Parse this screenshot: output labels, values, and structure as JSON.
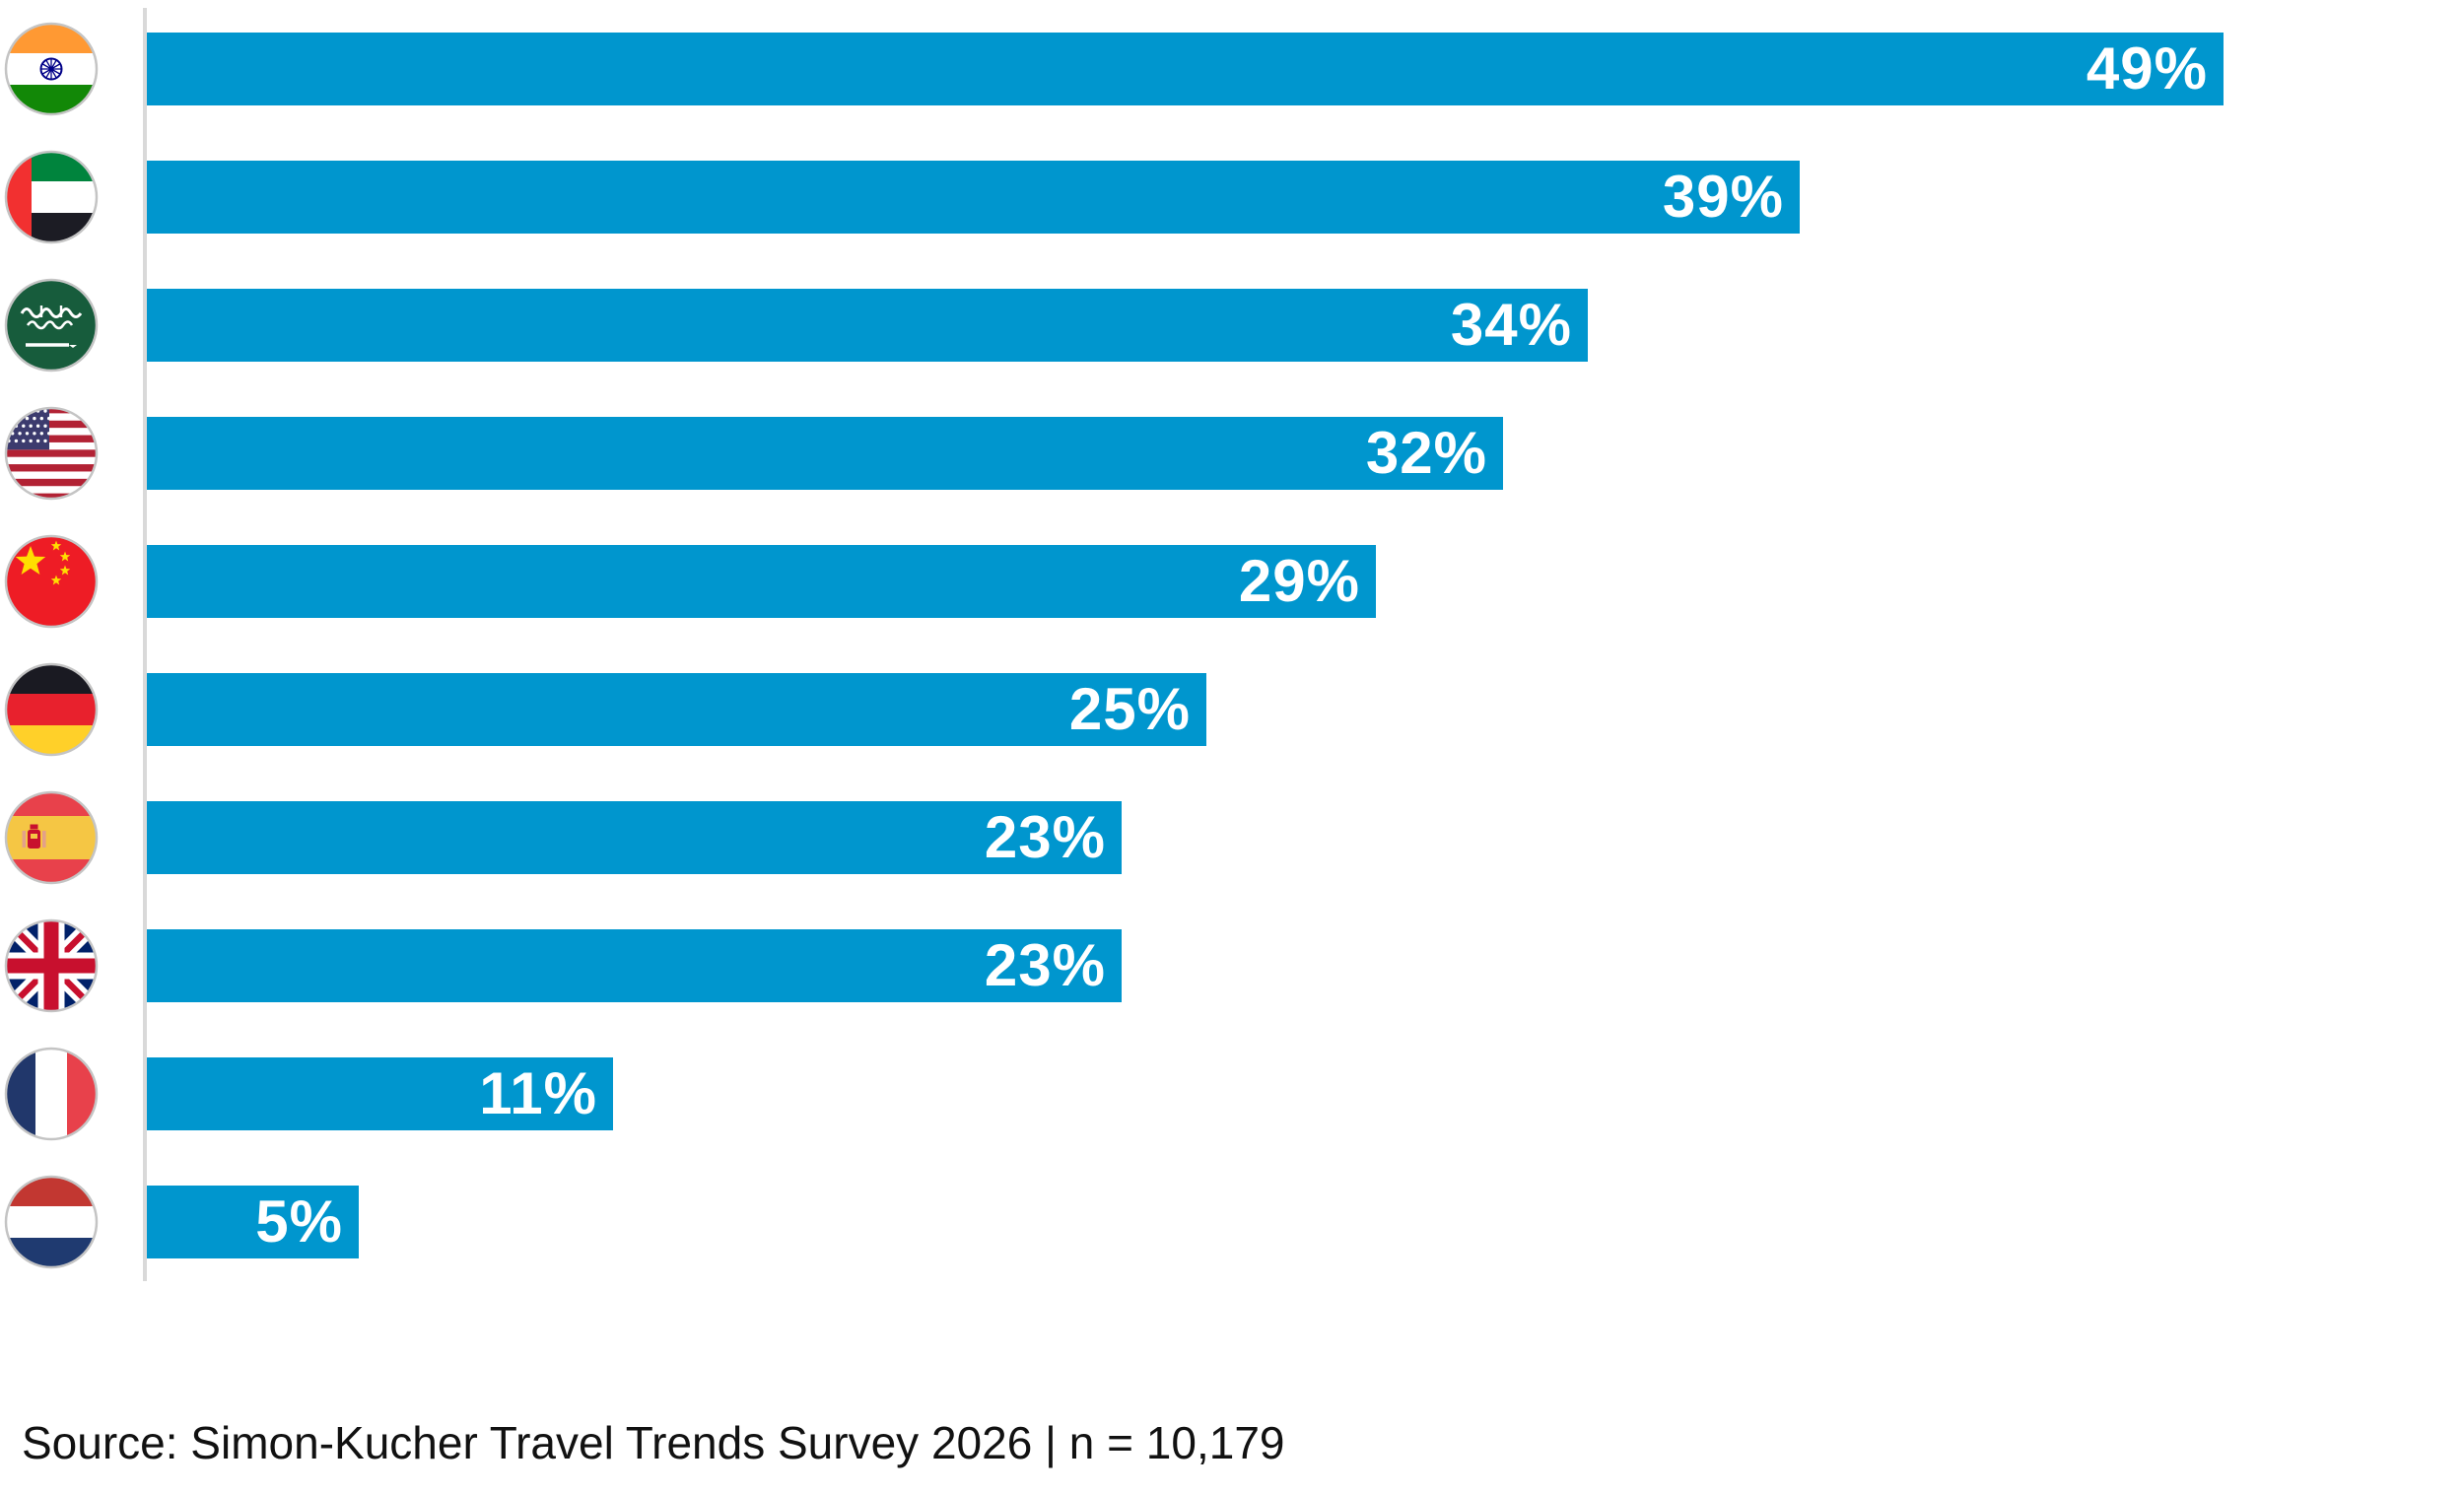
{
  "chart_data": {
    "type": "bar",
    "orientation": "horizontal",
    "title": "",
    "xlabel": "",
    "ylabel": "",
    "unit": "%",
    "xlim": [
      0,
      53
    ],
    "gridlines": false,
    "legend": "none",
    "categories": [
      "India",
      "United Arab Emirates",
      "Saudi Arabia",
      "United States",
      "China",
      "Germany",
      "Spain",
      "United Kingdom",
      "France",
      "Netherlands"
    ],
    "flag_icons": [
      "india-flag-icon",
      "uae-flag-icon",
      "saudi-arabia-flag-icon",
      "usa-flag-icon",
      "china-flag-icon",
      "germany-flag-icon",
      "spain-flag-icon",
      "uk-flag-icon",
      "france-flag-icon",
      "netherlands-flag-icon"
    ],
    "values": [
      49,
      39,
      34,
      32,
      29,
      25,
      23,
      23,
      11,
      5
    ],
    "labels": [
      "49%",
      "39%",
      "34%",
      "32%",
      "29%",
      "25%",
      "23%",
      "23%",
      "11%",
      "5%"
    ],
    "bar_color": "#0096CE",
    "label_color": "#FFFFFF",
    "axis_line_color": "#D9D9D9"
  },
  "footer": {
    "source_text": "Source: Simon-Kucher Travel Trends Survey 2026 | n = 10,179"
  }
}
